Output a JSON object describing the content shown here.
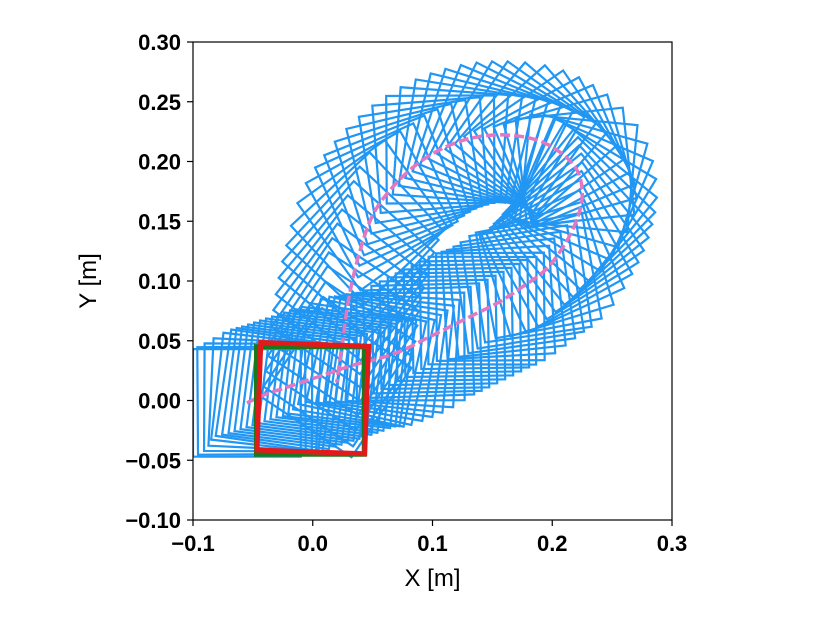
{
  "chart_data": {
    "type": "line",
    "title": "",
    "xlabel": "X [m]",
    "ylabel": "Y [m]",
    "xlim": [
      -0.1,
      0.3
    ],
    "ylim": [
      -0.1,
      0.3
    ],
    "xticks": [
      -0.1,
      0.0,
      0.1,
      0.2,
      0.3
    ],
    "yticks": [
      -0.1,
      -0.05,
      0.0,
      0.05,
      0.1,
      0.15,
      0.2,
      0.25,
      0.3
    ],
    "xtick_labels": [
      "−0.1",
      "0.0",
      "0.1",
      "0.2",
      "0.3"
    ],
    "ytick_labels": [
      "−0.10",
      "−0.05",
      "0.00",
      "0.05",
      "0.10",
      "0.15",
      "0.20",
      "0.25",
      "0.30"
    ],
    "grid": false,
    "legend": "none",
    "colors": {
      "path": "#e377c2",
      "square_trace": "#2196f3",
      "start_square": "#1a7a1a",
      "end_square": "#e31a1c"
    },
    "square_side": 0.09,
    "series": [
      {
        "x": [
          -0.055,
          -0.04,
          -0.025,
          -0.01,
          0.005,
          0.02,
          0.035,
          0.055,
          0.075,
          0.095,
          0.115,
          0.135,
          0.155,
          0.175,
          0.195,
          0.21,
          0.22,
          0.225,
          0.222,
          0.21,
          0.19,
          0.165,
          0.14,
          0.115,
          0.09,
          0.068,
          0.05,
          0.038,
          0.03,
          0.025,
          0.02
        ],
        "y": [
          -0.002,
          0.005,
          0.01,
          0.015,
          0.02,
          0.025,
          0.03,
          0.035,
          0.042,
          0.052,
          0.062,
          0.072,
          0.082,
          0.095,
          0.11,
          0.13,
          0.15,
          0.17,
          0.19,
          0.205,
          0.217,
          0.222,
          0.221,
          0.214,
          0.2,
          0.18,
          0.155,
          0.12,
          0.085,
          0.05,
          0.015
        ]
      }
    ],
    "start_pose": {
      "x": -0.002,
      "y": 0.0,
      "theta_deg": 0
    },
    "end_pose": {
      "x": 0.0,
      "y": 0.002,
      "theta_deg": -2
    }
  }
}
